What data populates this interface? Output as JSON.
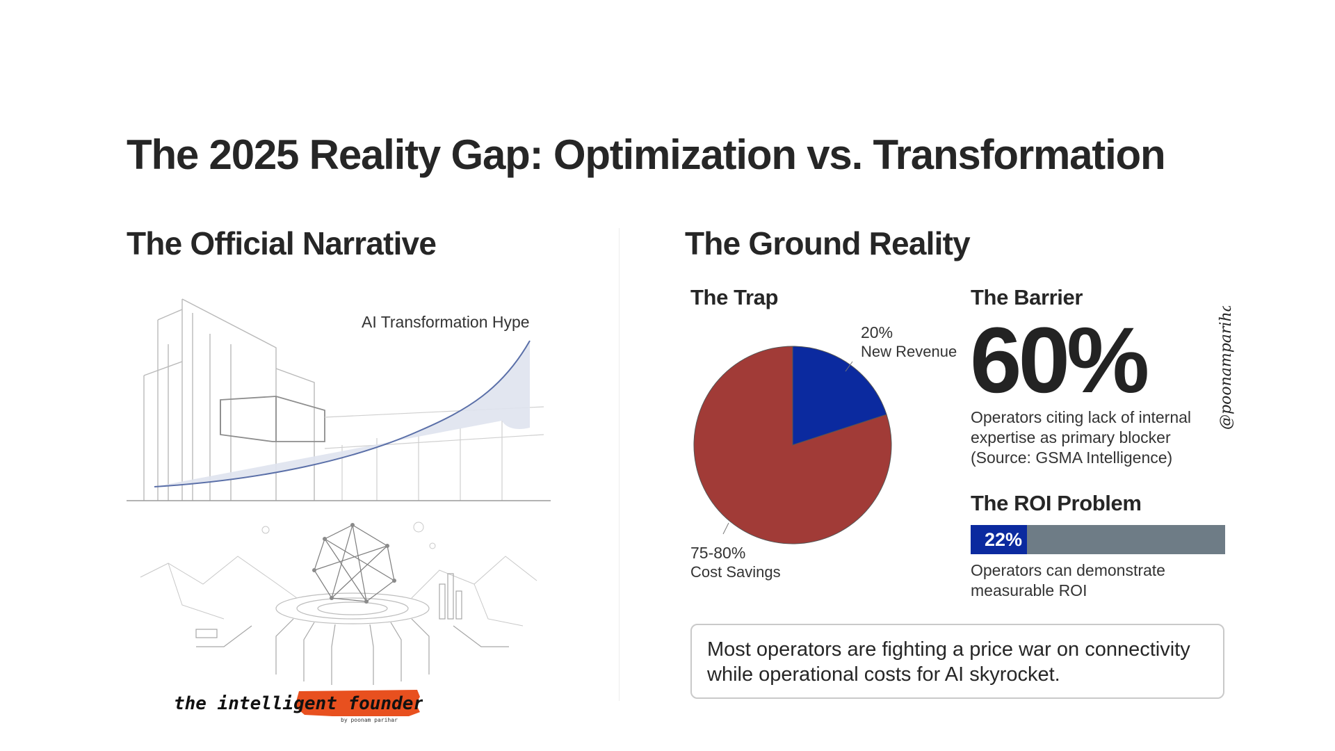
{
  "title": "The 2025 Reality Gap: Optimization vs. Transformation",
  "left": {
    "heading": "The Official Narrative",
    "hype_label": "AI Transformation Hype"
  },
  "right": {
    "heading": "The Ground Reality",
    "trap": {
      "title": "The Trap",
      "slices": [
        {
          "pct": "20%",
          "label": "New Revenue"
        },
        {
          "pct": "75-80%",
          "label": "Cost Savings"
        }
      ]
    },
    "barrier": {
      "title": "The Barrier",
      "stat": "60%",
      "lines": [
        "Operators citing lack of internal",
        "expertise as primary blocker",
        "(Source: GSMA Intelligence)"
      ]
    },
    "roi": {
      "title": "The ROI Problem",
      "pct_label": "22%",
      "lines": [
        "Operators can demonstrate",
        "measurable ROI"
      ]
    },
    "callout_lines": [
      "Most operators are fighting a price war on connectivity",
      "while operational costs for AI skyrocket."
    ]
  },
  "watermark": "@poonamparihar",
  "logo": {
    "text": "the intelligent founder",
    "byline": "by poonam parihar",
    "accent": "#e8501f"
  },
  "colors": {
    "revenue": "#0b2a9f",
    "savings": "#a13b37",
    "roi_fill": "#0b2a9f",
    "roi_track": "#6e7c86",
    "hype_line": "#5a6fa8",
    "hype_fill": "#dfe3ee"
  },
  "chart_data": [
    {
      "type": "pie",
      "title": "The Trap",
      "slices": [
        {
          "name": "New Revenue",
          "value": 20,
          "label": "20%"
        },
        {
          "name": "Cost Savings",
          "value": 80,
          "label": "75-80%"
        }
      ]
    },
    {
      "type": "bar",
      "title": "The ROI Problem",
      "categories": [
        "Operators can demonstrate measurable ROI"
      ],
      "values": [
        22
      ],
      "ylim": [
        0,
        100
      ]
    }
  ]
}
